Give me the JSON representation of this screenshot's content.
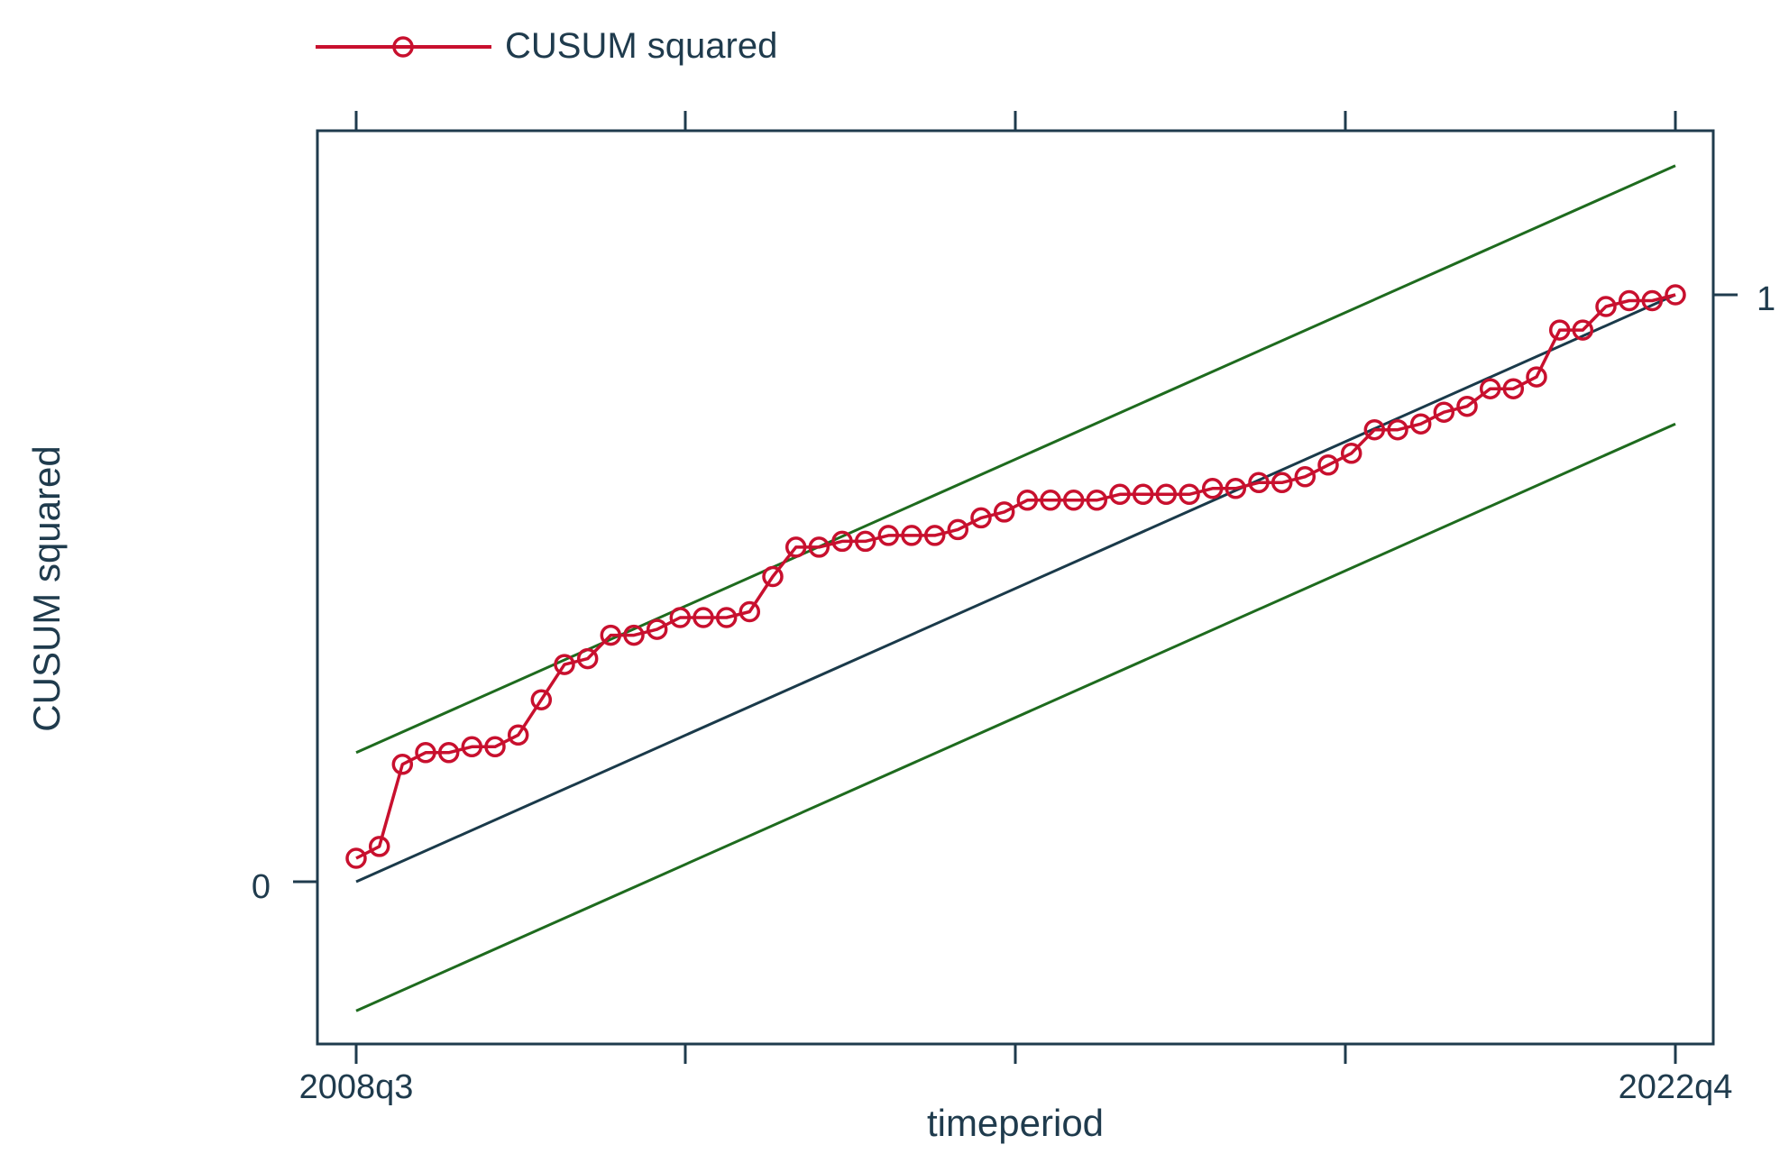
{
  "chart_data": {
    "type": "line",
    "legend": {
      "placement": "top-left",
      "label": "CUSUM squared"
    },
    "xlabel": "timeperiod",
    "ylabel": "CUSUM squared",
    "x_tick_labels": [
      "2008q3",
      "2022q4"
    ],
    "y_tick_labels": [
      "0",
      "1"
    ],
    "x_range": [
      "2008q3",
      "2022q4"
    ],
    "ylim": [
      -0.27,
      1.3
    ],
    "grid": false,
    "colors": {
      "series": "#c8102e",
      "bounds": "#1e6b1e",
      "reference": "#1a3a4a",
      "axis": "#1f3b4d"
    },
    "series": [
      {
        "name": "CUSUM squared",
        "periods": [
          "2008q3",
          "2008q4",
          "2009q1",
          "2009q2",
          "2009q3",
          "2009q4",
          "2010q1",
          "2010q2",
          "2010q3",
          "2010q4",
          "2011q1",
          "2011q2",
          "2011q3",
          "2011q4",
          "2012q1",
          "2012q2",
          "2012q3",
          "2012q4",
          "2013q1",
          "2013q2",
          "2013q3",
          "2013q4",
          "2014q1",
          "2014q2",
          "2014q3",
          "2014q4",
          "2015q1",
          "2015q2",
          "2015q3",
          "2015q4",
          "2016q1",
          "2016q2",
          "2016q3",
          "2016q4",
          "2017q1",
          "2017q2",
          "2017q3",
          "2017q4",
          "2018q1",
          "2018q2",
          "2018q3",
          "2018q4",
          "2019q1",
          "2019q2",
          "2019q3",
          "2019q4",
          "2020q1",
          "2020q2",
          "2020q3",
          "2020q4",
          "2021q1",
          "2021q2",
          "2021q3",
          "2021q4",
          "2022q1",
          "2022q2",
          "2022q3",
          "2022q4"
        ],
        "values": [
          0.04,
          0.06,
          0.2,
          0.22,
          0.22,
          0.23,
          0.23,
          0.25,
          0.31,
          0.37,
          0.38,
          0.42,
          0.42,
          0.43,
          0.45,
          0.45,
          0.45,
          0.46,
          0.52,
          0.57,
          0.57,
          0.58,
          0.58,
          0.59,
          0.59,
          0.59,
          0.6,
          0.62,
          0.63,
          0.65,
          0.65,
          0.65,
          0.65,
          0.66,
          0.66,
          0.66,
          0.66,
          0.67,
          0.67,
          0.68,
          0.68,
          0.69,
          0.71,
          0.73,
          0.77,
          0.77,
          0.78,
          0.8,
          0.81,
          0.84,
          0.84,
          0.86,
          0.94,
          0.94,
          0.98,
          0.99,
          0.99,
          1.0
        ]
      },
      {
        "role": "upper-bound",
        "periods": [
          "2008q3",
          "2022q4"
        ],
        "values": [
          0.22,
          1.22
        ]
      },
      {
        "role": "reference",
        "periods": [
          "2008q3",
          "2022q4"
        ],
        "values": [
          0.0,
          1.0
        ]
      },
      {
        "role": "lower-bound",
        "periods": [
          "2008q3",
          "2022q4"
        ],
        "values": [
          -0.22,
          0.78
        ]
      }
    ]
  }
}
